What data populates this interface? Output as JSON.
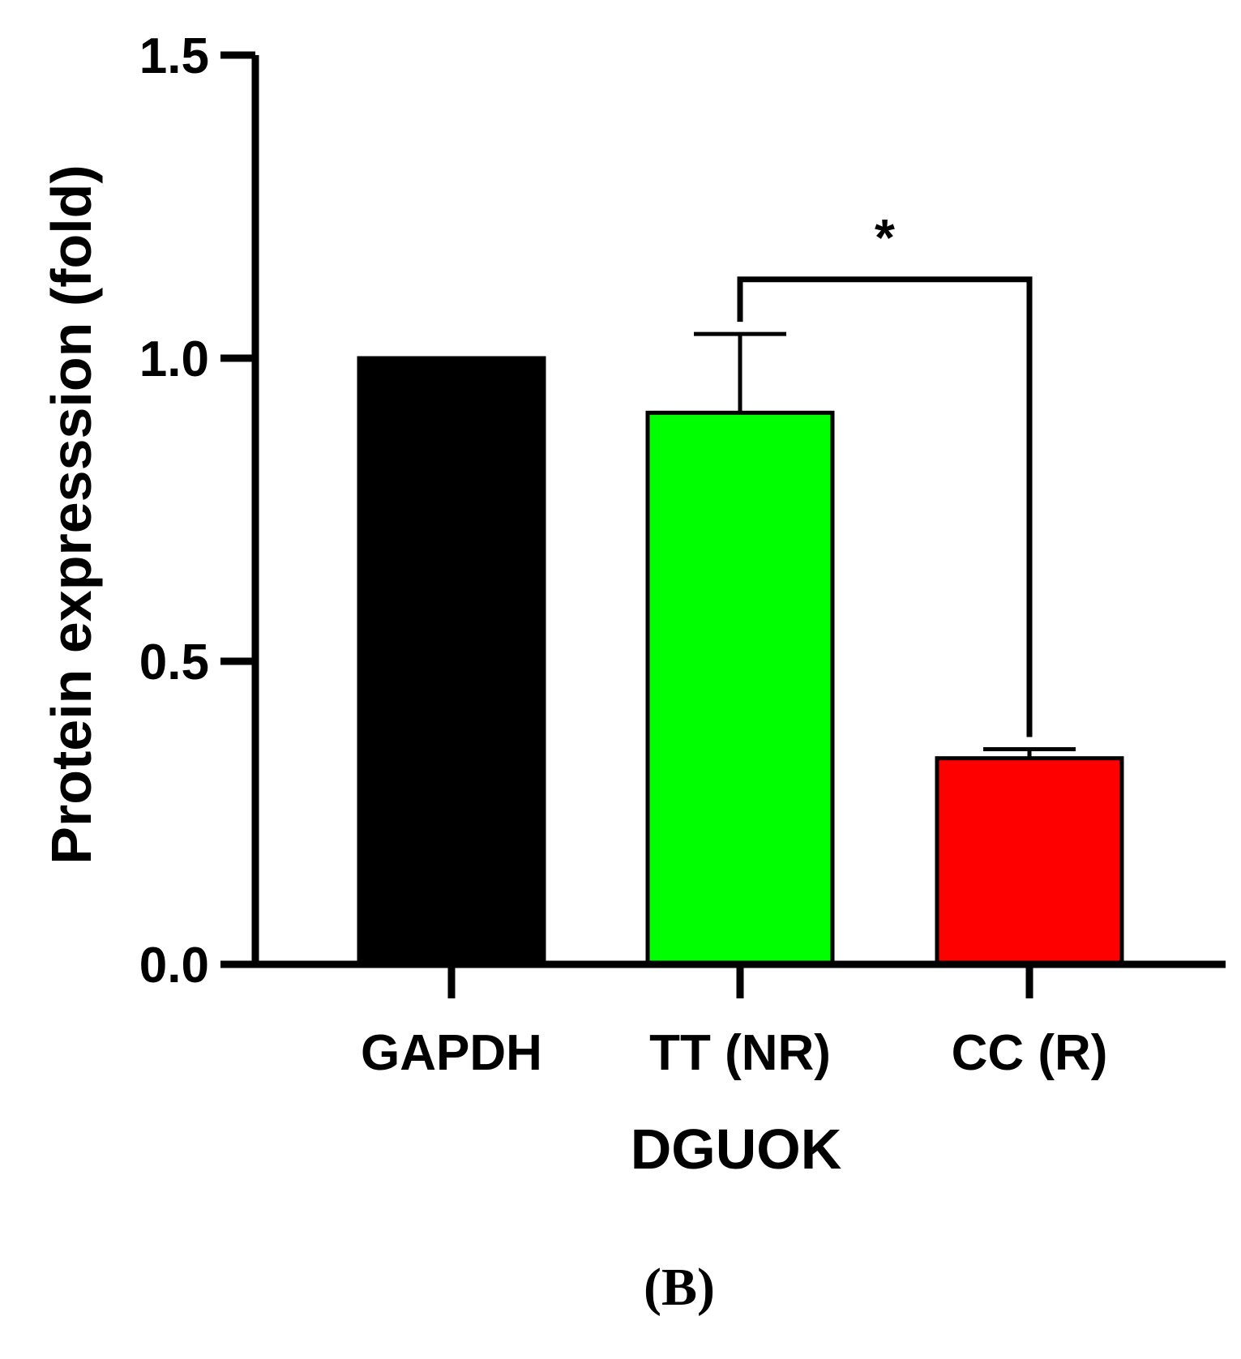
{
  "chart_data": {
    "type": "bar",
    "categories": [
      "GAPDH",
      "TT (NR)",
      "CC (R)"
    ],
    "values": [
      1.0,
      0.91,
      0.34
    ],
    "errors_upper": [
      0.0,
      0.13,
      0.015
    ],
    "colors": [
      "#000000",
      "#00ff00",
      "#ff0000"
    ],
    "ylabel": "Protein expresssion (fold)",
    "xlabel": "DGUOK",
    "ylim": [
      0,
      1.5
    ],
    "yticks": [
      0.0,
      0.5,
      1.0,
      1.5
    ],
    "ytick_labels": [
      "0.0",
      "0.5",
      "1.0",
      "1.5"
    ],
    "significance": [
      {
        "between": [
          "TT (NR)",
          "CC (R)"
        ],
        "label": "*"
      }
    ],
    "grid": false
  },
  "panel_label": "(B)"
}
